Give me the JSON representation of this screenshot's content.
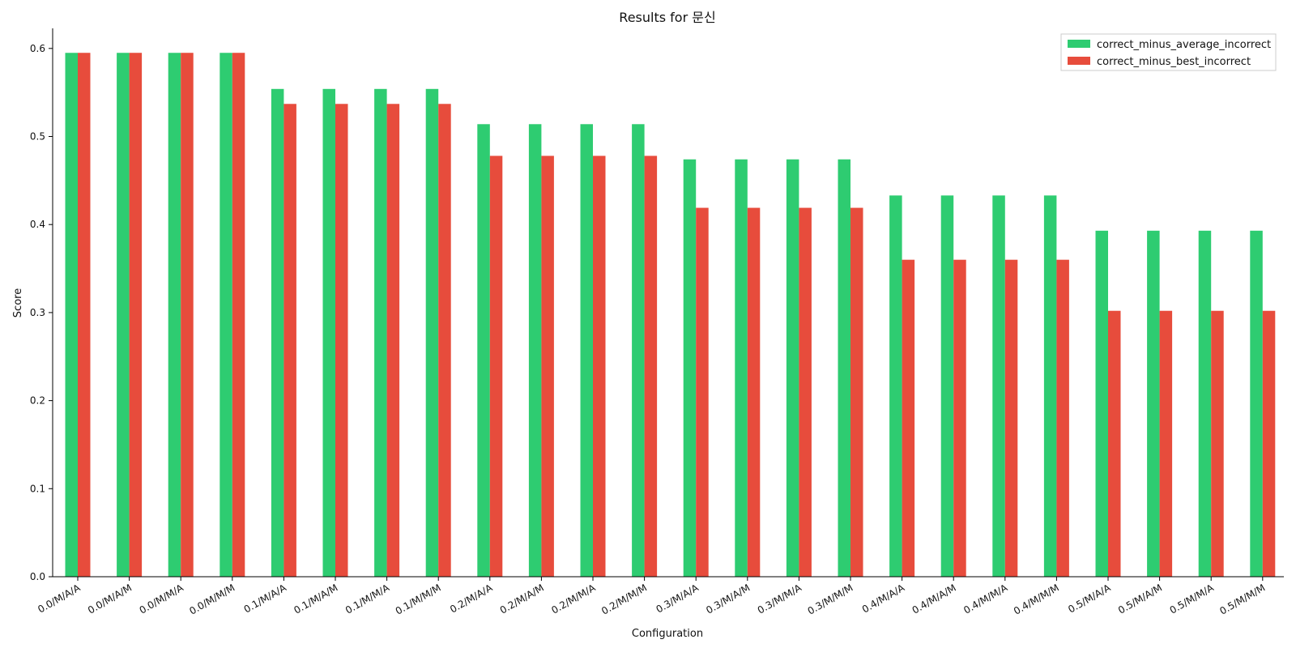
{
  "chart_data": {
    "type": "bar",
    "title": "Results for 문신",
    "xlabel": "Configuration",
    "ylabel": "Score",
    "ylim": [
      0,
      0.625
    ],
    "yticks": [
      "0.0",
      "0.1",
      "0.2",
      "0.3",
      "0.4",
      "0.5",
      "0.6"
    ],
    "categories": [
      "0.0/M/A/A",
      "0.0/M/A/M",
      "0.0/M/M/A",
      "0.0/M/M/M",
      "0.1/M/A/A",
      "0.1/M/A/M",
      "0.1/M/M/A",
      "0.1/M/M/M",
      "0.2/M/A/A",
      "0.2/M/A/M",
      "0.2/M/M/A",
      "0.2/M/M/M",
      "0.3/M/A/A",
      "0.3/M/A/M",
      "0.3/M/M/A",
      "0.3/M/M/M",
      "0.4/M/A/A",
      "0.4/M/A/M",
      "0.4/M/M/A",
      "0.4/M/M/M",
      "0.5/M/A/A",
      "0.5/M/A/M",
      "0.5/M/M/A",
      "0.5/M/M/M"
    ],
    "series": [
      {
        "name": "correct_minus_average_incorrect",
        "color": "#2ecc71",
        "values": [
          0.595,
          0.595,
          0.595,
          0.595,
          0.554,
          0.554,
          0.554,
          0.554,
          0.514,
          0.514,
          0.514,
          0.514,
          0.474,
          0.474,
          0.474,
          0.474,
          0.433,
          0.433,
          0.433,
          0.433,
          0.393,
          0.393,
          0.393,
          0.393
        ]
      },
      {
        "name": "correct_minus_best_incorrect",
        "color": "#e74c3c",
        "values": [
          0.595,
          0.595,
          0.595,
          0.595,
          0.537,
          0.537,
          0.537,
          0.537,
          0.478,
          0.478,
          0.478,
          0.478,
          0.419,
          0.419,
          0.419,
          0.419,
          0.36,
          0.36,
          0.36,
          0.36,
          0.302,
          0.302,
          0.302,
          0.302
        ]
      }
    ],
    "legend_position": "top-right",
    "grid": false
  }
}
